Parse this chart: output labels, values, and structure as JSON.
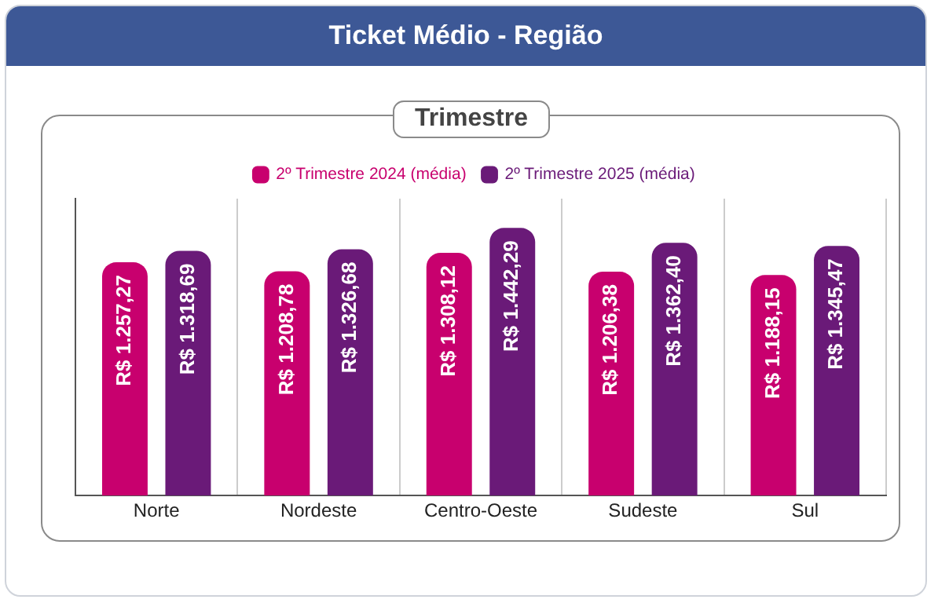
{
  "chart_data": {
    "type": "bar",
    "title": "Ticket Médio - Região",
    "subtitle": "Trimestre",
    "categories": [
      "Norte",
      "Nordeste",
      "Centro-Oeste",
      "Sudeste",
      "Sul"
    ],
    "series": [
      {
        "name": "2º Trimestre 2024 (média)",
        "color": "#c8006e",
        "values": [
          1257.27,
          1208.78,
          1308.12,
          1206.38,
          1188.15
        ],
        "value_labels": [
          "R$ 1.257,27",
          "R$ 1.208,78",
          "R$ 1.308,12",
          "R$ 1.206,38",
          "R$ 1.188,15"
        ]
      },
      {
        "name": "2º Trimestre 2025 (média)",
        "color": "#6a1a78",
        "values": [
          1318.69,
          1326.68,
          1442.29,
          1362.4,
          1345.47
        ],
        "value_labels": [
          "R$ 1.318,69",
          "R$ 1.326,68",
          "R$ 1.442,29",
          "R$ 1.362,40",
          "R$ 1.345,47"
        ]
      }
    ],
    "tick_labels": "x",
    "grid": "x",
    "legend": "top"
  }
}
